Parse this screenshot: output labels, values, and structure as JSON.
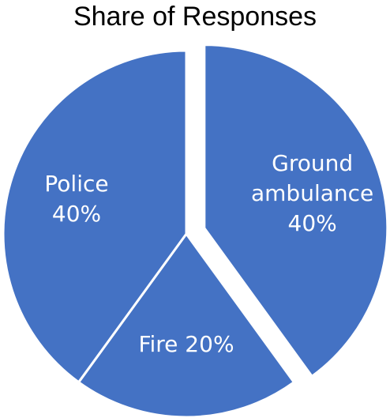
{
  "chart_data": {
    "type": "pie",
    "title": "Share of Responses",
    "slices": [
      {
        "name": "Ground ambulance",
        "label_lines": [
          "Ground",
          "ambulance",
          "40%"
        ],
        "value": 40,
        "exploded": true,
        "color": "#4472C4"
      },
      {
        "name": "Fire",
        "label_lines": [
          "Fire 20%"
        ],
        "value": 20,
        "exploded": false,
        "color": "#4472C4"
      },
      {
        "name": "Police",
        "label_lines": [
          "Police",
          "40%"
        ],
        "value": 40,
        "exploded": false,
        "color": "#4472C4"
      }
    ],
    "start_angle": "top",
    "direction": "clockwise",
    "slice_border_color": "#ffffff"
  }
}
